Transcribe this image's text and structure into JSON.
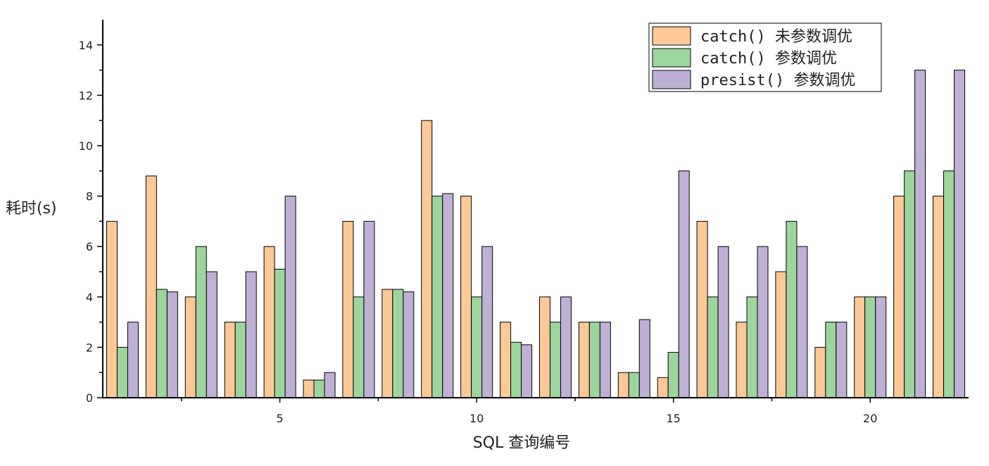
{
  "chart_data": {
    "type": "bar",
    "title": "",
    "xlabel": "SQL 查询编号",
    "ylabel": "耗时(s)",
    "categories": [
      1,
      2,
      3,
      4,
      5,
      6,
      7,
      8,
      9,
      10,
      11,
      12,
      13,
      14,
      15,
      16,
      17,
      18,
      19,
      20,
      21,
      22
    ],
    "x_ticks": [
      5,
      10,
      15,
      20
    ],
    "ylim": [
      0,
      15
    ],
    "y_ticks": [
      0,
      2,
      4,
      6,
      8,
      10,
      12,
      14
    ],
    "legend_position": "top-right",
    "grid": false,
    "series": [
      {
        "name": "catch() 未参数调优",
        "color": "#fcc896",
        "values": [
          7,
          8.8,
          4,
          3,
          6,
          0.7,
          7,
          4.3,
          11,
          8,
          3,
          4,
          3,
          1,
          0.8,
          7,
          3,
          5,
          2,
          4,
          8,
          8
        ]
      },
      {
        "name": "catch() 参数调优",
        "color": "#9dd69d",
        "values": [
          2,
          4.3,
          6,
          3,
          5.1,
          0.7,
          4,
          4.3,
          8,
          4,
          2.2,
          3,
          3,
          1,
          1.8,
          4,
          4,
          7,
          3,
          4,
          9,
          9
        ]
      },
      {
        "name": "presist() 参数调优",
        "color": "#bfb0d6",
        "values": [
          3,
          4.2,
          5,
          5,
          8,
          1,
          7,
          4.2,
          8.1,
          6,
          2.1,
          4,
          3,
          3.1,
          9,
          6,
          6,
          6,
          3,
          4,
          13,
          13
        ]
      }
    ]
  }
}
